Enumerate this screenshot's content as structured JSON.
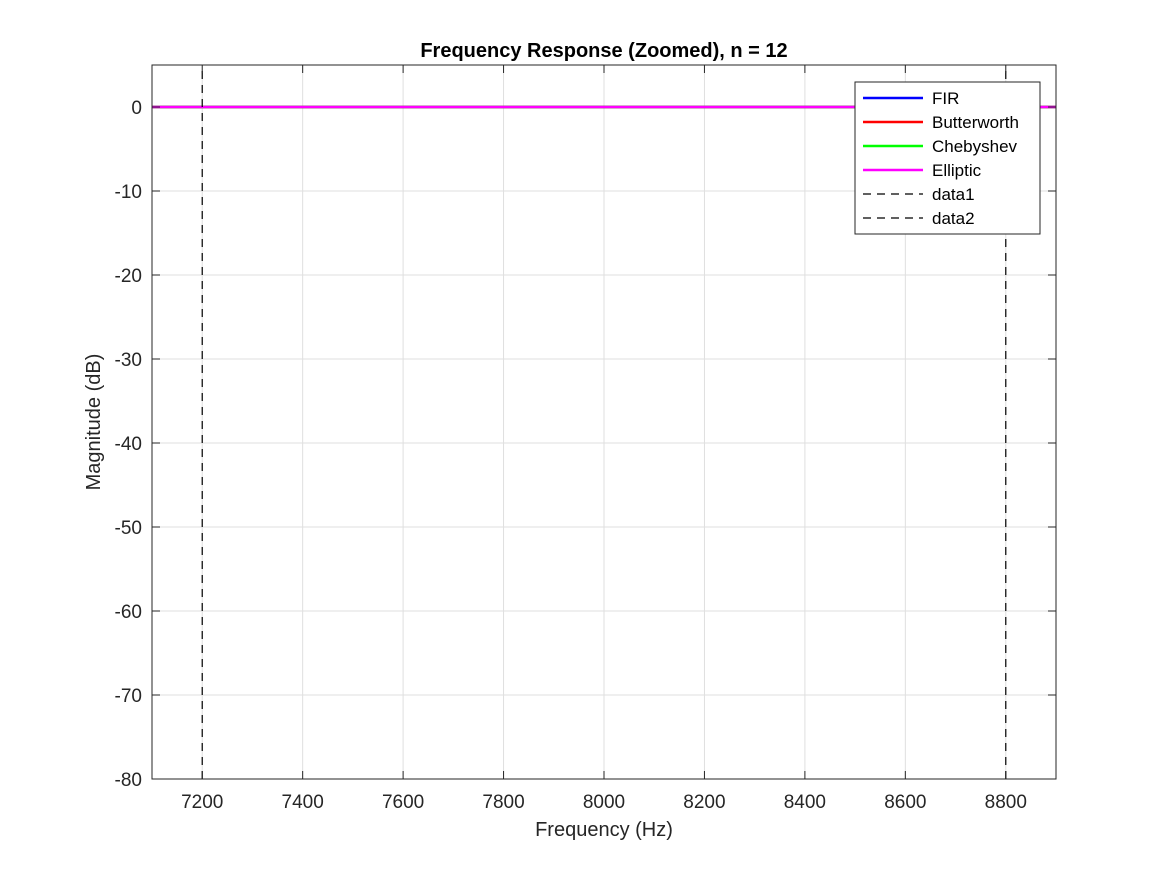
{
  "chart_data": {
    "type": "line",
    "title": "Frequency Response (Zoomed), n = 12",
    "xlabel": "Frequency (Hz)",
    "ylabel": "Magnitude (dB)",
    "xlim": [
      7100,
      8900
    ],
    "ylim": [
      -80,
      5
    ],
    "xticks": [
      7200,
      7400,
      7600,
      7800,
      8000,
      8200,
      8400,
      8600,
      8800
    ],
    "yticks": [
      -80,
      -70,
      -60,
      -50,
      -40,
      -30,
      -20,
      -10,
      0
    ],
    "grid": true,
    "legend_location": "top-right",
    "series": [
      {
        "name": "FIR",
        "color": "#0000ff",
        "style": "solid",
        "x": [
          7100,
          8900
        ],
        "y": [
          0,
          0
        ]
      },
      {
        "name": "Butterworth",
        "color": "#ff0000",
        "style": "solid",
        "x": [
          7100,
          8900
        ],
        "y": [
          0,
          0
        ]
      },
      {
        "name": "Chebyshev",
        "color": "#00ff00",
        "style": "solid",
        "x": [
          7100,
          8900
        ],
        "y": [
          0,
          0
        ]
      },
      {
        "name": "Elliptic",
        "color": "#ff00ff",
        "style": "solid",
        "x": [
          7100,
          8900
        ],
        "y": [
          0,
          0
        ]
      },
      {
        "name": "data1",
        "color": "#000000",
        "style": "dashed",
        "x": [
          7200,
          7200
        ],
        "y": [
          -80,
          5
        ]
      },
      {
        "name": "data2",
        "color": "#000000",
        "style": "dashed",
        "x": [
          8800,
          8800
        ],
        "y": [
          -80,
          5
        ]
      }
    ]
  }
}
